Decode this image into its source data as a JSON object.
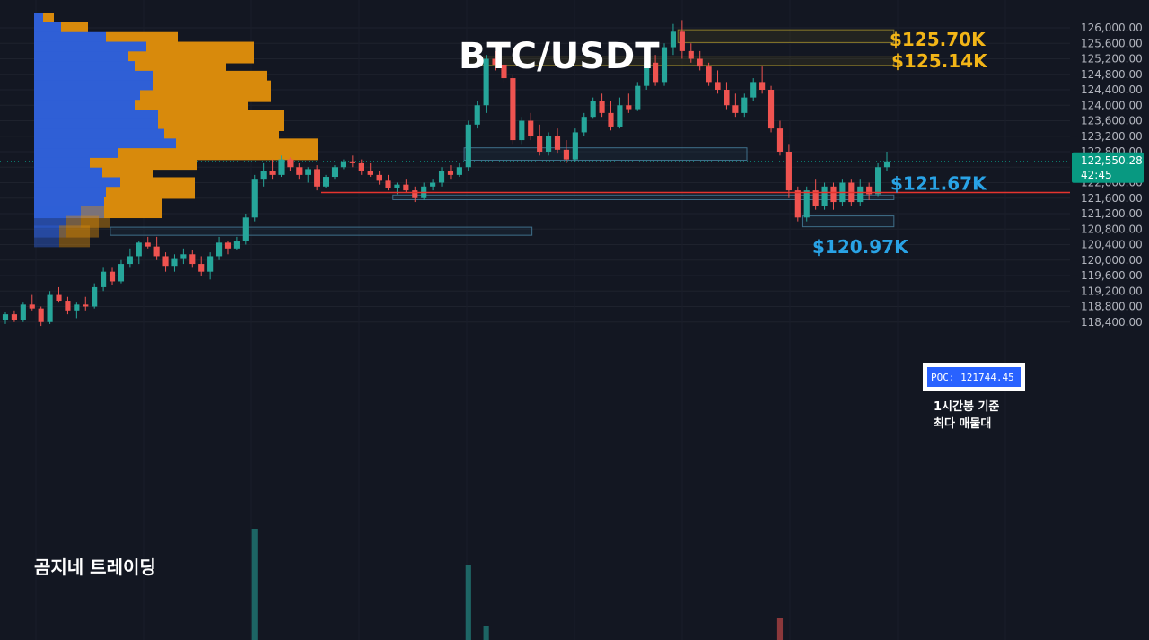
{
  "chart_data": {
    "type": "candlestick",
    "title": "BTC/USDT",
    "watermark": "곰지네 트레이딩",
    "y_axis": {
      "ticks": [
        "126,000.00",
        "125,600.00",
        "125,200.00",
        "124,800.00",
        "124,400.00",
        "124,000.00",
        "123,600.00",
        "123,200.00",
        "122,800.00",
        "122,400.00",
        "122,000.00",
        "121,600.00",
        "121,200.00",
        "120,800.00",
        "120,400.00",
        "120,000.00",
        "119,600.00",
        "119,200.00",
        "118,800.00",
        "118,400.00"
      ],
      "tick_values": [
        126000,
        125600,
        125200,
        124800,
        124400,
        124000,
        123600,
        123200,
        122800,
        122400,
        122000,
        121600,
        121200,
        120800,
        120400,
        120000,
        119600,
        119200,
        118800,
        118400
      ],
      "range": [
        118200,
        126400
      ]
    },
    "current_price": {
      "label": "122,550.28",
      "countdown": "42:45",
      "value": 122550.28,
      "color": "#089981"
    },
    "levels": [
      {
        "label": "$125.70K",
        "value": 125700,
        "color": "#f2b517"
      },
      {
        "label": "$125.14K",
        "value": 125140,
        "color": "#f2b517"
      },
      {
        "label": "$121.67K",
        "value": 121670,
        "color": "#29a3e6"
      },
      {
        "label": "$120.97K",
        "value": 120970,
        "color": "#29a3e6"
      }
    ],
    "poc": {
      "label": "POC: 121744.45",
      "value": 121744.45,
      "note_line1": "1시간봉 기준",
      "note_line2": "최다 매물대"
    },
    "zones": [
      {
        "type": "supply",
        "top": 125950,
        "bottom": 125620,
        "x_from": 0.59,
        "x_to": 0.778
      },
      {
        "type": "supply",
        "top": 125250,
        "bottom": 125030,
        "x_from": 0.407,
        "x_to": 0.778
      },
      {
        "type": "demand",
        "top": 122900,
        "bottom": 122580,
        "x_from": 0.404,
        "x_to": 0.65
      },
      {
        "type": "demand",
        "top": 121680,
        "bottom": 121560,
        "x_from": 0.342,
        "x_to": 0.778
      },
      {
        "type": "demand",
        "top": 121140,
        "bottom": 120860,
        "x_from": 0.698,
        "x_to": 0.778
      },
      {
        "type": "demand",
        "top": 120850,
        "bottom": 120640,
        "x_from": 0.096,
        "x_to": 0.463
      }
    ],
    "volume_profile": [
      {
        "price": 126100,
        "buy": 10,
        "sell": 12
      },
      {
        "price": 125850,
        "buy": 30,
        "sell": 30
      },
      {
        "price": 125600,
        "buy": 80,
        "sell": 80
      },
      {
        "price": 125350,
        "buy": 125,
        "sell": 120
      },
      {
        "price": 125100,
        "buy": 105,
        "sell": 95
      },
      {
        "price": 124850,
        "buy": 112,
        "sell": 102
      },
      {
        "price": 124600,
        "buy": 132,
        "sell": 127
      },
      {
        "price": 124350,
        "buy": 132,
        "sell": 132
      },
      {
        "price": 124100,
        "buy": 118,
        "sell": 120
      },
      {
        "price": 123850,
        "buy": 112,
        "sell": 115
      },
      {
        "price": 123600,
        "buy": 138,
        "sell": 140
      },
      {
        "price": 123350,
        "buy": 138,
        "sell": 135
      },
      {
        "price": 123100,
        "buy": 145,
        "sell": 125
      },
      {
        "price": 122850,
        "buy": 158,
        "sell": 158
      },
      {
        "price": 122600,
        "buy": 93,
        "sell": 88
      },
      {
        "price": 122350,
        "buy": 62,
        "sell": 50
      },
      {
        "price": 122100,
        "buy": 76,
        "sell": 57
      },
      {
        "price": 121850,
        "buy": 96,
        "sell": 83
      },
      {
        "price": 121600,
        "buy": 80,
        "sell": 53
      },
      {
        "price": 121350,
        "buy": 78,
        "sell": 64
      },
      {
        "price": 121100,
        "buy": 52,
        "sell": 32
      },
      {
        "price": 120850,
        "buy": 35,
        "sell": 37
      },
      {
        "price": 120600,
        "buy": 28,
        "sell": 34
      }
    ],
    "candles": [
      [
        118450,
        118650,
        118350,
        118600
      ],
      [
        118600,
        118700,
        118400,
        118450
      ],
      [
        118450,
        118900,
        118400,
        118850
      ],
      [
        118850,
        119100,
        118700,
        118750
      ],
      [
        118750,
        118800,
        118300,
        118400
      ],
      [
        118400,
        119200,
        118350,
        119100
      ],
      [
        119100,
        119300,
        118900,
        118950
      ],
      [
        118950,
        119050,
        118600,
        118700
      ],
      [
        118700,
        118900,
        118500,
        118850
      ],
      [
        118850,
        119050,
        118700,
        118800
      ],
      [
        118800,
        119400,
        118750,
        119300
      ],
      [
        119300,
        119800,
        119200,
        119700
      ],
      [
        119700,
        119800,
        119350,
        119450
      ],
      [
        119450,
        120000,
        119400,
        119900
      ],
      [
        119900,
        120300,
        119800,
        120100
      ],
      [
        120100,
        120500,
        119900,
        120450
      ],
      [
        120450,
        120600,
        120300,
        120350
      ],
      [
        120350,
        120600,
        120000,
        120100
      ],
      [
        120100,
        120200,
        119700,
        119850
      ],
      [
        119850,
        120150,
        119700,
        120050
      ],
      [
        120050,
        120300,
        119900,
        120150
      ],
      [
        120150,
        120250,
        119800,
        119900
      ],
      [
        119900,
        120100,
        119600,
        119700
      ],
      [
        119700,
        120200,
        119500,
        120100
      ],
      [
        120100,
        120600,
        120000,
        120450
      ],
      [
        120450,
        120500,
        120150,
        120300
      ],
      [
        120300,
        120600,
        120250,
        120500
      ],
      [
        120500,
        121200,
        120400,
        121100
      ],
      [
        121100,
        122200,
        121000,
        122100
      ],
      [
        122100,
        122500,
        121900,
        122300
      ],
      [
        122300,
        122600,
        122100,
        122200
      ],
      [
        122200,
        122700,
        122150,
        122600
      ],
      [
        122600,
        122650,
        122300,
        122400
      ],
      [
        122400,
        122500,
        122100,
        122200
      ],
      [
        122200,
        122400,
        122000,
        122350
      ],
      [
        122350,
        122450,
        121800,
        121900
      ],
      [
        121900,
        122200,
        121850,
        122150
      ],
      [
        122150,
        122450,
        122100,
        122400
      ],
      [
        122400,
        122600,
        122350,
        122550
      ],
      [
        122550,
        122700,
        122400,
        122500
      ],
      [
        122500,
        122600,
        122200,
        122300
      ],
      [
        122300,
        122500,
        122150,
        122200
      ],
      [
        122200,
        122300,
        121950,
        122050
      ],
      [
        122050,
        122200,
        121800,
        121850
      ],
      [
        121850,
        122000,
        121700,
        121950
      ],
      [
        121950,
        122100,
        121750,
        121800
      ],
      [
        121800,
        121900,
        121500,
        121600
      ],
      [
        121600,
        122000,
        121550,
        121900
      ],
      [
        121900,
        122100,
        121800,
        122000
      ],
      [
        122000,
        122400,
        121900,
        122300
      ],
      [
        122300,
        122450,
        122100,
        122200
      ],
      [
        122200,
        122500,
        122150,
        122400
      ],
      [
        122400,
        123600,
        122300,
        123500
      ],
      [
        123500,
        124100,
        123400,
        124000
      ],
      [
        124000,
        125300,
        123800,
        125200
      ],
      [
        125200,
        125400,
        124900,
        125050
      ],
      [
        125050,
        125200,
        124600,
        124700
      ],
      [
        124700,
        124800,
        123000,
        123100
      ],
      [
        123100,
        123700,
        123000,
        123600
      ],
      [
        123600,
        123800,
        123100,
        123200
      ],
      [
        123200,
        123500,
        122700,
        122800
      ],
      [
        122800,
        123300,
        122700,
        123200
      ],
      [
        123200,
        123400,
        122750,
        122850
      ],
      [
        122850,
        123100,
        122500,
        122600
      ],
      [
        122600,
        123400,
        122550,
        123300
      ],
      [
        123300,
        123800,
        123200,
        123700
      ],
      [
        123700,
        124200,
        123650,
        124100
      ],
      [
        124100,
        124300,
        123700,
        123800
      ],
      [
        123800,
        124100,
        123350,
        123450
      ],
      [
        123450,
        124200,
        123400,
        124000
      ],
      [
        124000,
        124300,
        123800,
        123900
      ],
      [
        123900,
        124600,
        123850,
        124500
      ],
      [
        124500,
        125200,
        124400,
        125100
      ],
      [
        125100,
        125300,
        124500,
        124600
      ],
      [
        124600,
        125600,
        124500,
        125500
      ],
      [
        125500,
        126100,
        125300,
        125900
      ],
      [
        125900,
        126200,
        125200,
        125400
      ],
      [
        125400,
        125600,
        125100,
        125200
      ],
      [
        125200,
        125400,
        124900,
        125000
      ],
      [
        125000,
        125100,
        124500,
        124600
      ],
      [
        124600,
        124900,
        124300,
        124400
      ],
      [
        124400,
        124600,
        123900,
        124000
      ],
      [
        124000,
        124300,
        123700,
        123800
      ],
      [
        123800,
        124300,
        123700,
        124200
      ],
      [
        124200,
        124700,
        124100,
        124600
      ],
      [
        124600,
        125000,
        124300,
        124400
      ],
      [
        124400,
        124500,
        123300,
        123400
      ],
      [
        123400,
        123600,
        122700,
        122800
      ],
      [
        122800,
        123000,
        121600,
        121800
      ],
      [
        121800,
        121900,
        121000,
        121100
      ],
      [
        121100,
        121900,
        121000,
        121800
      ],
      [
        121800,
        122100,
        121300,
        121400
      ],
      [
        121400,
        122000,
        121300,
        121900
      ],
      [
        121900,
        122000,
        121300,
        121500
      ],
      [
        121500,
        122100,
        121400,
        122000
      ],
      [
        122000,
        122100,
        121400,
        121500
      ],
      [
        121500,
        122100,
        121400,
        121900
      ],
      [
        121900,
        122000,
        121550,
        121700
      ],
      [
        121700,
        122500,
        121650,
        122400
      ],
      [
        122400,
        122800,
        122300,
        122550
      ]
    ],
    "volumes": [
      {
        "index": 28,
        "value": 0.62
      },
      {
        "index": 52,
        "value": 0.42
      },
      {
        "index": 54,
        "value": 0.08
      },
      {
        "index": 87,
        "value": 0.12
      }
    ]
  }
}
